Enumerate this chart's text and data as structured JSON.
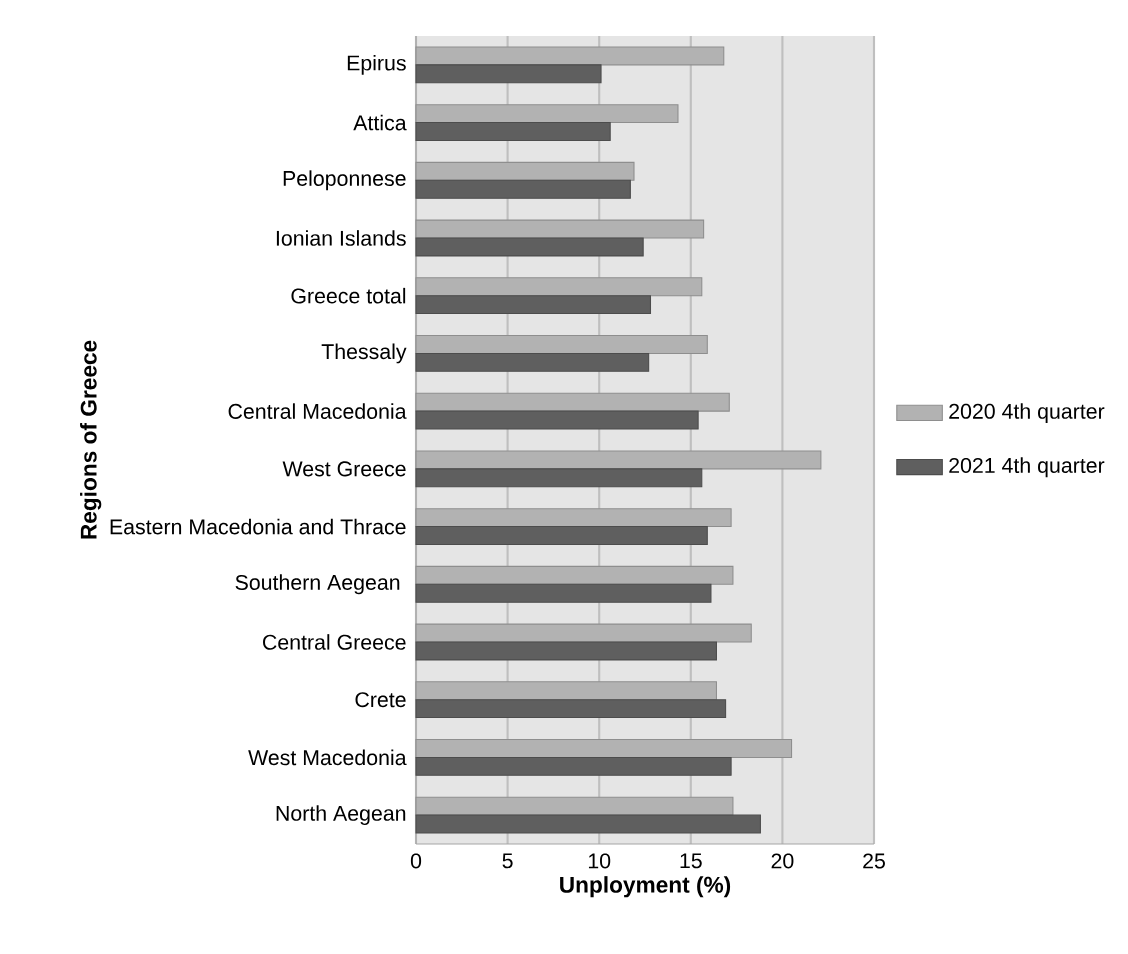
{
  "chart_data": {
    "type": "bar",
    "orientation": "horizontal",
    "xlabel": "Unployment (%)",
    "ylabel": "Regions of Greece",
    "categories": [
      "Epirus",
      "Attica",
      "Peloponnese",
      "Ionian Islands",
      "Greece total",
      "Thessaly",
      "Central Macedonia",
      "West Greece",
      "Eastern Macedonia and Thrace",
      "Southern Aegean ",
      "Central Greece",
      "Crete",
      "West Macedonia",
      "North Aegean"
    ],
    "series": [
      {
        "name": "2020 4th quarter",
        "color": "#b2b2b2",
        "values": [
          16.8,
          14.3,
          11.9,
          15.7,
          15.6,
          15.9,
          17.1,
          22.1,
          17.2,
          17.3,
          18.3,
          16.4,
          20.5,
          17.3
        ]
      },
      {
        "name": "2021 4th quarter",
        "color": "#5f5f5f",
        "values": [
          10.1,
          10.6,
          11.7,
          12.4,
          12.8,
          12.7,
          15.4,
          15.6,
          15.9,
          16.1,
          16.4,
          16.9,
          17.2,
          18.8
        ]
      }
    ],
    "xlim": [
      0,
      25
    ],
    "xticks": [
      0,
      5,
      10,
      15,
      20,
      25
    ],
    "grid": "x",
    "legend": "right"
  }
}
